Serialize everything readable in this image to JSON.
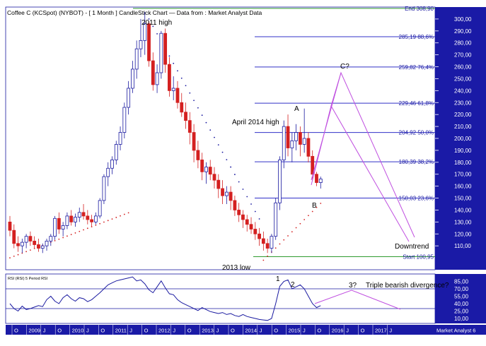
{
  "header": {
    "title": "Coffee C (KCSpot) (NYBOT) -  [ 1 Month ] CandleStick Chart — Data from : Market Analyst Data"
  },
  "footer": {
    "brand": "Market Analyst 6"
  },
  "colors": {
    "axis_panel": "#1a1aa6",
    "fib": "#3030c8",
    "green_level": "#2e9a2e",
    "bull_candle": "#1a1aa0",
    "bear_candle": "#d42020",
    "projection": "#c050e0",
    "sar_up": "#d42020",
    "sar_down": "#1a1aa0"
  },
  "chart_data": [
    {
      "type": "candlestick",
      "title": "Coffee C (KCSpot) (NYBOT) -  [ 1 Month ] CandleStick Chart — Data from : Market Analyst Data",
      "period": "1 Month",
      "ylim": [
        90,
        310
      ],
      "y_ticks": [
        "110,00",
        "120,00",
        "130,00",
        "140,00",
        "150,00",
        "160,00",
        "170,00",
        "180,00",
        "190,00",
        "200,00",
        "210,00",
        "220,00",
        "230,00",
        "240,00",
        "250,00",
        "260,00",
        "270,00",
        "280,00",
        "290,00",
        "300,00"
      ],
      "x_axis_labels": [
        "O",
        "2009",
        "J",
        "O",
        "2010",
        "J",
        "O",
        "2011",
        "J",
        "O",
        "2012",
        "J",
        "O",
        "2013",
        "J",
        "O",
        "2014",
        "J",
        "O",
        "2015",
        "J",
        "O",
        "2016",
        "J",
        "O",
        "2017",
        "J"
      ],
      "fib_levels": [
        {
          "label": "End 308,90",
          "value": 308.9,
          "kind": "end"
        },
        {
          "label": "285,19 88,6%",
          "value": 285.19,
          "kind": "fib"
        },
        {
          "label": "259,82 76,4%",
          "value": 259.82,
          "kind": "fib"
        },
        {
          "label": "229,46 61,8%",
          "value": 229.46,
          "kind": "fib"
        },
        {
          "label": "204,92 50,0%",
          "value": 204.92,
          "kind": "fib"
        },
        {
          "label": "180,39 38,2%",
          "value": 180.39,
          "kind": "fib"
        },
        {
          "label": "150,03 23,6%",
          "value": 150.03,
          "kind": "fib"
        },
        {
          "label": "Start 100,95",
          "value": 100.95,
          "kind": "start"
        }
      ],
      "annotations": [
        "2011 high",
        "April 2014 high",
        "A",
        "B",
        "C?",
        "Downtrend",
        "2013 low"
      ],
      "series": [
        {
          "name": "Coffee C",
          "values": [
            [
              130,
              135,
              118,
              123
            ],
            [
              123,
              128,
              108,
              112
            ],
            [
              112,
              118,
              105,
              110
            ],
            [
              110,
              116,
              104,
              113
            ],
            [
              113,
              120,
              108,
              118
            ],
            [
              118,
              122,
              110,
              114
            ],
            [
              114,
              118,
              108,
              111
            ],
            [
              111,
              116,
              105,
              108
            ],
            [
              108,
              112,
              104,
              110
            ],
            [
              110,
              116,
              106,
              114
            ],
            [
              114,
              120,
              110,
              118
            ],
            [
              118,
              135,
              115,
              133
            ],
            [
              133,
              138,
              120,
              124
            ],
            [
              124,
              130,
              118,
              127
            ],
            [
              127,
              138,
              124,
              135
            ],
            [
              135,
              140,
              127,
              130
            ],
            [
              130,
              137,
              126,
              134
            ],
            [
              134,
              142,
              130,
              138
            ],
            [
              138,
              145,
              132,
              135
            ],
            [
              135,
              140,
              128,
              132
            ],
            [
              132,
              136,
              126,
              130
            ],
            [
              130,
              138,
              128,
              135
            ],
            [
              135,
              150,
              133,
              148
            ],
            [
              148,
              170,
              145,
              168
            ],
            [
              168,
              180,
              160,
              175
            ],
            [
              175,
              185,
              170,
              182
            ],
            [
              182,
              198,
              178,
              195
            ],
            [
              195,
              210,
              190,
              205
            ],
            [
              205,
              230,
              200,
              226
            ],
            [
              226,
              248,
              220,
              242
            ],
            [
              242,
              265,
              238,
              258
            ],
            [
              258,
              282,
              250,
              275
            ],
            [
              275,
              300,
              268,
              282
            ],
            [
              282,
              306,
              270,
              296
            ],
            [
              296,
              298,
              260,
              265
            ],
            [
              265,
              272,
              240,
              245
            ],
            [
              245,
              262,
              238,
              255
            ],
            [
              255,
              290,
              250,
              288
            ],
            [
              288,
              292,
              255,
              262
            ],
            [
              262,
              268,
              235,
              240
            ],
            [
              240,
              252,
              232,
              242
            ],
            [
              242,
              248,
              225,
              230
            ],
            [
              230,
              238,
              218,
              222
            ],
            [
              222,
              230,
              208,
              215
            ],
            [
              215,
              222,
              195,
              205
            ],
            [
              205,
              212,
              180,
              190
            ],
            [
              190,
              198,
              175,
              182
            ],
            [
              182,
              188,
              165,
              172
            ],
            [
              172,
              180,
              162,
              176
            ],
            [
              176,
              182,
              165,
              170
            ],
            [
              170,
              176,
              158,
              165
            ],
            [
              165,
              170,
              150,
              158
            ],
            [
              158,
              165,
              145,
              152
            ],
            [
              152,
              160,
              145,
              155
            ],
            [
              155,
              160,
              140,
              148
            ],
            [
              148,
              152,
              135,
              140
            ],
            [
              140,
              146,
              130,
              136
            ],
            [
              136,
              140,
              125,
              132
            ],
            [
              132,
              136,
              122,
              128
            ],
            [
              128,
              134,
              120,
              124
            ],
            [
              124,
              130,
              115,
              120
            ],
            [
              120,
              125,
              110,
              116
            ],
            [
              116,
              122,
              106,
              112
            ],
            [
              112,
              116,
              104,
              108
            ],
            [
              108,
              120,
              104,
              118
            ],
            [
              118,
              150,
              115,
              146
            ],
            [
              146,
              185,
              140,
              182
            ],
            [
              182,
              215,
              175,
              210
            ],
            [
              210,
              220,
              185,
              192
            ],
            [
              192,
              205,
              180,
              198
            ],
            [
              198,
              212,
              190,
              205
            ],
            [
              205,
              210,
              185,
              195
            ],
            [
              195,
              225,
              188,
              200
            ],
            [
              200,
              205,
              180,
              185
            ],
            [
              185,
              190,
              165,
              170
            ],
            [
              170,
              172,
              160,
              163
            ],
            [
              163,
              168,
              158,
              166
            ]
          ]
        },
        {
          "name": "SAR",
          "values": []
        }
      ]
    },
    {
      "type": "line",
      "title": "RSI (RSI) 5 Period RSI",
      "ylim": [
        0,
        100
      ],
      "y_ticks": [
        "10,00",
        "25,00",
        "40,00",
        "55,00",
        "70,00",
        "85,00"
      ],
      "reference_lines": [
        70,
        30
      ],
      "annotations": [
        "1",
        "2",
        "3?",
        "Triple bearish divergence?"
      ],
      "series": [
        {
          "name": "RSI",
          "values": [
            40,
            30,
            25,
            35,
            28,
            30,
            33,
            36,
            34,
            48,
            55,
            45,
            40,
            52,
            58,
            50,
            45,
            52,
            50,
            44,
            48,
            55,
            62,
            70,
            78,
            82,
            86,
            88,
            90,
            92,
            94,
            86,
            88,
            80,
            68,
            62,
            74,
            86,
            72,
            60,
            58,
            48,
            42,
            38,
            34,
            30,
            26,
            32,
            28,
            24,
            22,
            20,
            22,
            18,
            20,
            16,
            14,
            18,
            14,
            12,
            10,
            8,
            7,
            6,
            10,
            40,
            75,
            85,
            88,
            70,
            74,
            78,
            70,
            55,
            40,
            32,
            36
          ]
        }
      ]
    }
  ]
}
